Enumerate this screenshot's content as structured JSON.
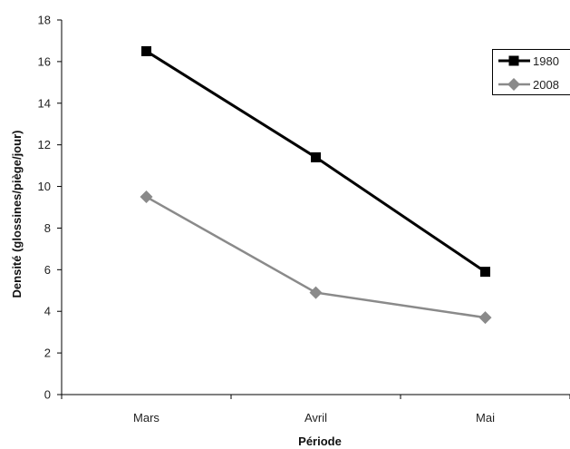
{
  "chart_data": {
    "type": "line",
    "categories": [
      "Mars",
      "Avril",
      "Mai"
    ],
    "series": [
      {
        "name": "1980",
        "values": [
          16.5,
          11.4,
          5.9
        ],
        "color": "#000000",
        "marker": "square"
      },
      {
        "name": "2008",
        "values": [
          9.5,
          4.9,
          3.7
        ],
        "color": "#8a8a8a",
        "marker": "diamond"
      }
    ],
    "xlabel": "Période",
    "ylabel": "Densité (glossines/piège/jour)",
    "ylim": [
      0,
      18
    ],
    "yticks": [
      0,
      2,
      4,
      6,
      8,
      10,
      12,
      14,
      16,
      18
    ],
    "grid": false,
    "legend_position": "top-right"
  }
}
